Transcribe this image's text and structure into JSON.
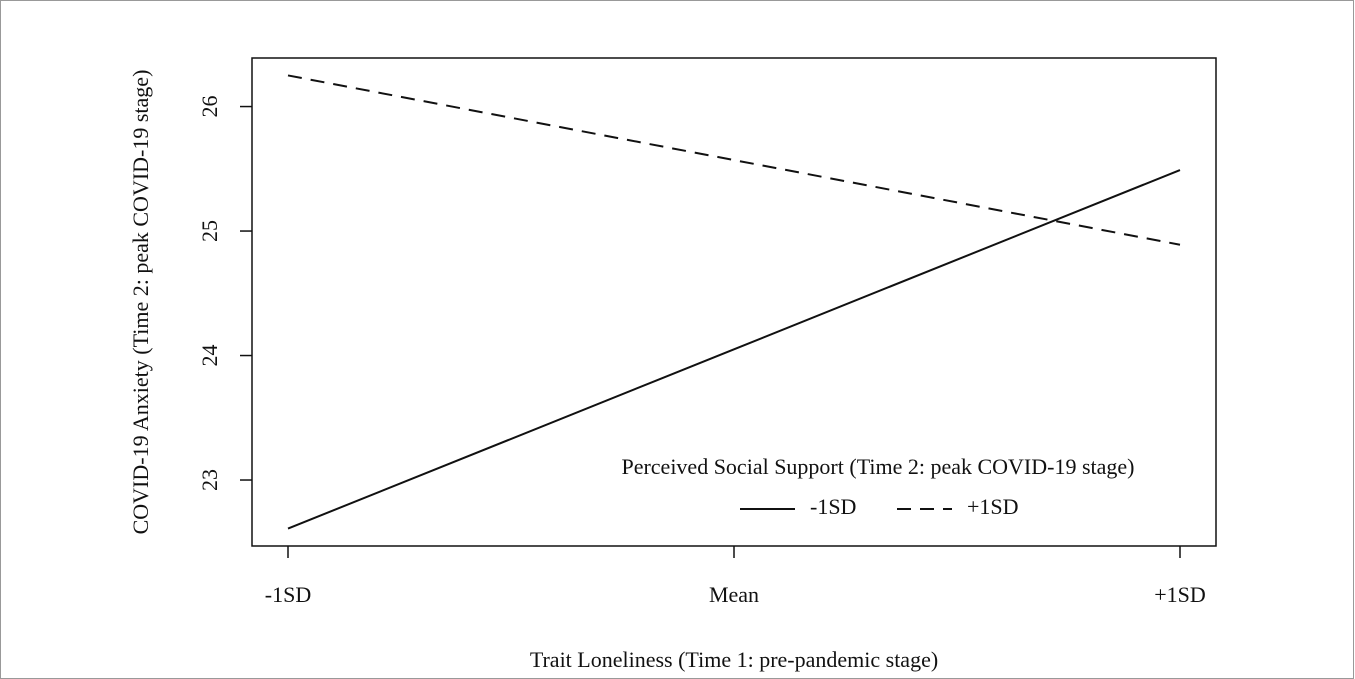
{
  "chart_data": {
    "type": "line",
    "xlabel": "Trait Loneliness (Time 1: pre-pandemic stage)",
    "ylabel": "COVID-19 Anxiety (Time 2: peak COVID-19 stage)",
    "categories": [
      "-1SD",
      "Mean",
      "+1SD"
    ],
    "series": [
      {
        "name": "-1SD",
        "color": "#111111",
        "dash": "solid",
        "values": [
          22.61,
          24.05,
          25.49
        ]
      },
      {
        "name": "+1SD",
        "color": "#111111",
        "dash": "dashed",
        "values": [
          26.25,
          25.57,
          24.89
        ]
      }
    ],
    "ylim": [
      22.47,
      26.39
    ],
    "yticks": [
      23,
      24,
      25,
      26
    ],
    "legend_title": "Perceived Social Support (Time 2: peak COVID-19 stage)",
    "legend": "bottom-right",
    "grid": false
  }
}
